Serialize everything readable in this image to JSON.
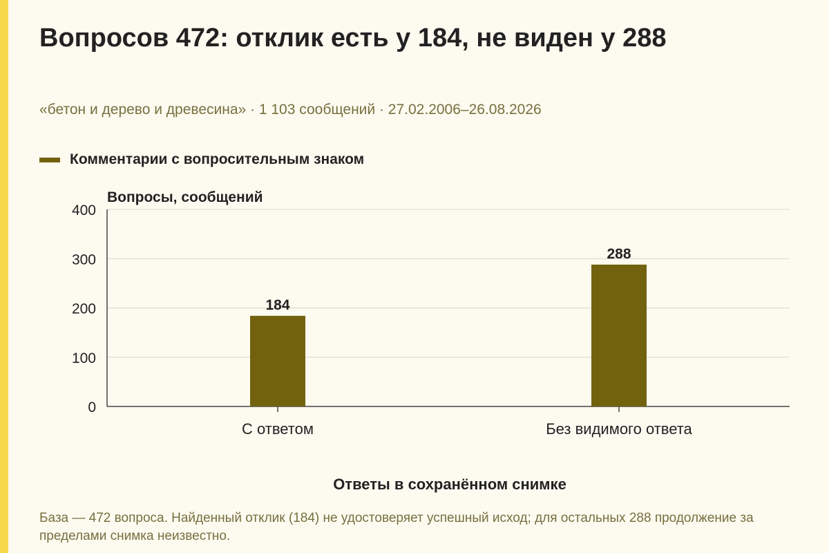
{
  "title": "Вопросов 472: отклик есть у 184, не виден у 288",
  "subtitle": "«бетон и дерево и древесина» · 1 103 сообщений · 27.02.2006–26.08.2026",
  "note": "База — 472 вопроса. Найденный отклик (184) не удостоверяет успешный исход; для остальных 288 продолжение за пределами снимка неизвестно.",
  "colors": {
    "bar": "#72620e",
    "accent": "#f7d84a",
    "background": "#fdfaf0",
    "muted_text": "#77703f"
  },
  "chart_data": {
    "type": "bar",
    "categories": [
      "С ответом",
      "Без видимого ответа"
    ],
    "series": [
      {
        "name": "Комментарии с вопросительным знаком",
        "values": [
          184,
          288
        ]
      }
    ],
    "data_labels": [
      "184",
      "288"
    ],
    "ylabel": "Вопросы, сообщений",
    "xlabel": "Ответы в сохранённом снимке",
    "ylim": [
      0,
      400
    ],
    "yticks": [
      0,
      100,
      200,
      300,
      400
    ],
    "grid": true,
    "legend_position": "top-left"
  }
}
